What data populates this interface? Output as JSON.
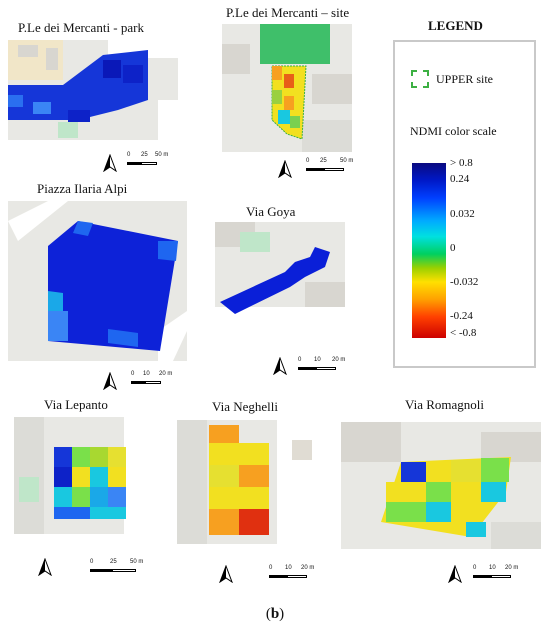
{
  "panels": [
    {
      "id": "mercanti_park",
      "title": "P.Le dei Mercanti - park",
      "scale": {
        "ticks": [
          "0",
          "25",
          "50 m"
        ]
      }
    },
    {
      "id": "mercanti_site",
      "title": "P.Le dei Mercanti – site",
      "scale": {
        "ticks": [
          "0",
          "25",
          "50 m"
        ]
      }
    },
    {
      "id": "ilaria_alpi",
      "title": "Piazza Ilaria Alpi",
      "scale": {
        "ticks": [
          "0",
          "10",
          "20 m"
        ]
      }
    },
    {
      "id": "via_goya",
      "title": "Via Goya",
      "scale": {
        "ticks": [
          "0",
          "10",
          "20 m"
        ]
      }
    },
    {
      "id": "via_lepanto",
      "title": "Via Lepanto",
      "scale": {
        "ticks": [
          "0",
          "25",
          "50 m"
        ]
      }
    },
    {
      "id": "via_neghelli",
      "title": "Via Neghelli",
      "scale": {
        "ticks": [
          "0",
          "10",
          "20 m"
        ]
      }
    },
    {
      "id": "via_romagnoli",
      "title": "Via Romagnoli",
      "scale": {
        "ticks": [
          "0",
          "10",
          "20 m"
        ]
      }
    }
  ],
  "legend": {
    "title": "LEGEND",
    "site_label": "UPPER site",
    "scale_title": "NDMI color scale",
    "scale_labels": [
      "> 0.8",
      "0.24",
      "0.032",
      "0",
      "-0.032",
      "-0.24",
      "< -0.8"
    ],
    "site_color": "#3cb043"
  },
  "caption": {
    "prefix": "(",
    "letter": "b",
    "suffix": ")"
  },
  "colors": {
    "very_high": "#0a22d8",
    "high": "#1a4ff0",
    "mid": "#19c8e0",
    "neutral": "#7ae04a",
    "low": "#f2e020",
    "lower": "#f7a020",
    "lowest": "#e03010",
    "map_bg": "#e8e8e4",
    "road": "#ffffff",
    "green_area": "#bfe6c9"
  }
}
